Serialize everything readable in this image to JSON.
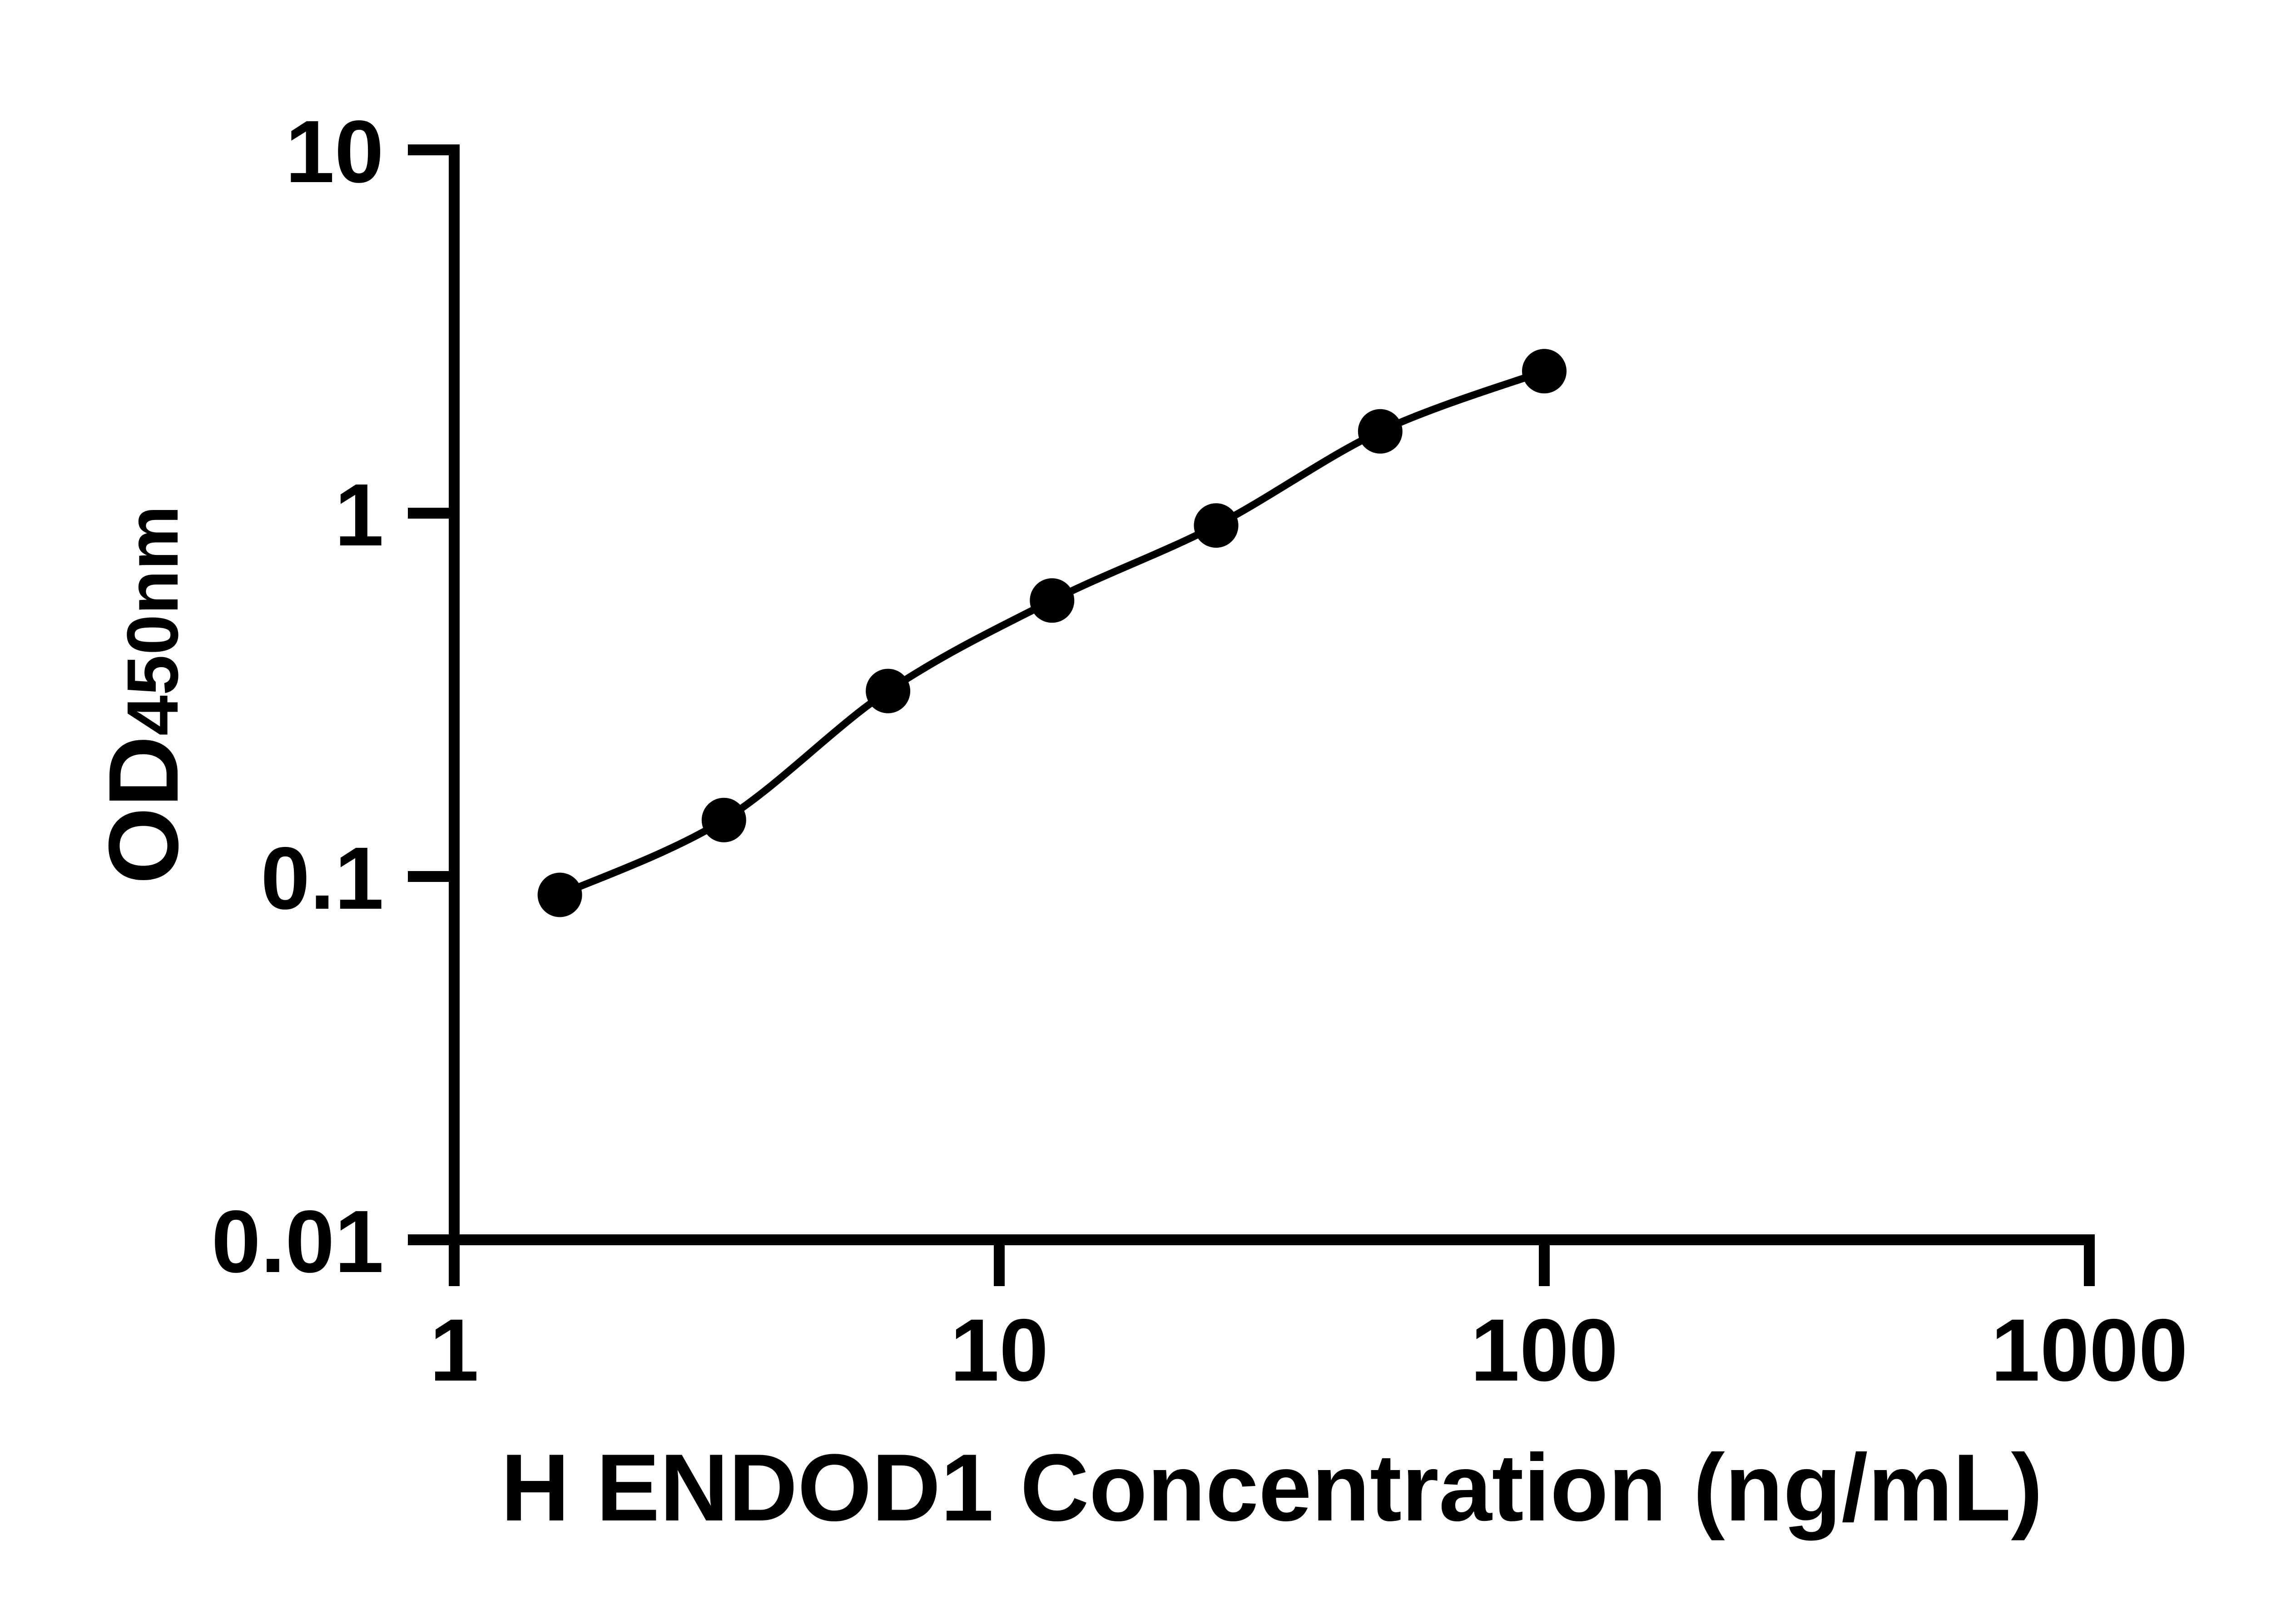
{
  "chart_data": {
    "type": "scatter",
    "title": "",
    "xlabel": "H ENDOD1 Concentration (ng/mL)",
    "ylabel": "OD450nm",
    "ylabel_main": "OD",
    "ylabel_sub": "450nm",
    "x_scale": "log",
    "y_scale": "log",
    "xlim": [
      1,
      1000
    ],
    "ylim": [
      0.01,
      10
    ],
    "x_ticks": [
      1,
      10,
      100,
      1000
    ],
    "x_tick_labels": [
      "1",
      "10",
      "100",
      "1000"
    ],
    "y_ticks": [
      10,
      1,
      0.1,
      0.01
    ],
    "y_tick_labels": [
      "10",
      "1",
      "0.1",
      "0.01"
    ],
    "grid": false,
    "legend": false,
    "series": [
      {
        "marker": "circle",
        "line": "smooth",
        "x": [
          1.5625,
          3.125,
          6.25,
          12.5,
          25,
          50,
          100
        ],
        "y": [
          0.089,
          0.143,
          0.324,
          0.575,
          0.925,
          1.68,
          2.46
        ]
      }
    ],
    "colors": {
      "foreground": "#000000",
      "background": "#ffffff"
    }
  }
}
